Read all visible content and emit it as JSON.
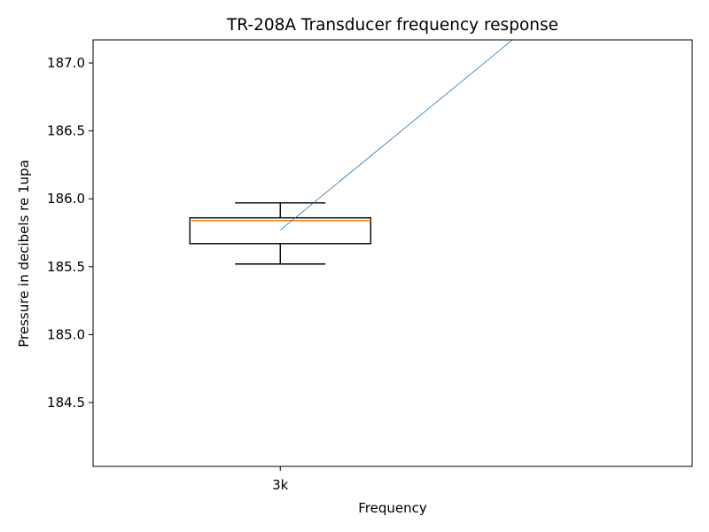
{
  "chart_data": {
    "type": "box",
    "title": "TR-208A Transducer frequency response",
    "xlabel": "Frequency",
    "ylabel": "Pressure in decibels re 1upa",
    "categories": [
      "3k"
    ],
    "ylim": [
      184.03,
      187.17
    ],
    "yticks": [
      "184.5",
      "185.0",
      "185.5",
      "186.0",
      "186.5",
      "187.0"
    ],
    "boxes": [
      {
        "category": "3k",
        "whisker_low": 185.52,
        "q1": 185.67,
        "median": 185.84,
        "q3": 185.86,
        "whisker_high": 185.97
      }
    ],
    "line_series": {
      "x": [
        1.0,
        1.62
      ],
      "y": [
        185.77,
        187.17
      ]
    },
    "colors": {
      "box": "#000000",
      "median": "#ff7f0e",
      "line": "#1f77b4"
    },
    "grid": false,
    "legend": "none"
  }
}
